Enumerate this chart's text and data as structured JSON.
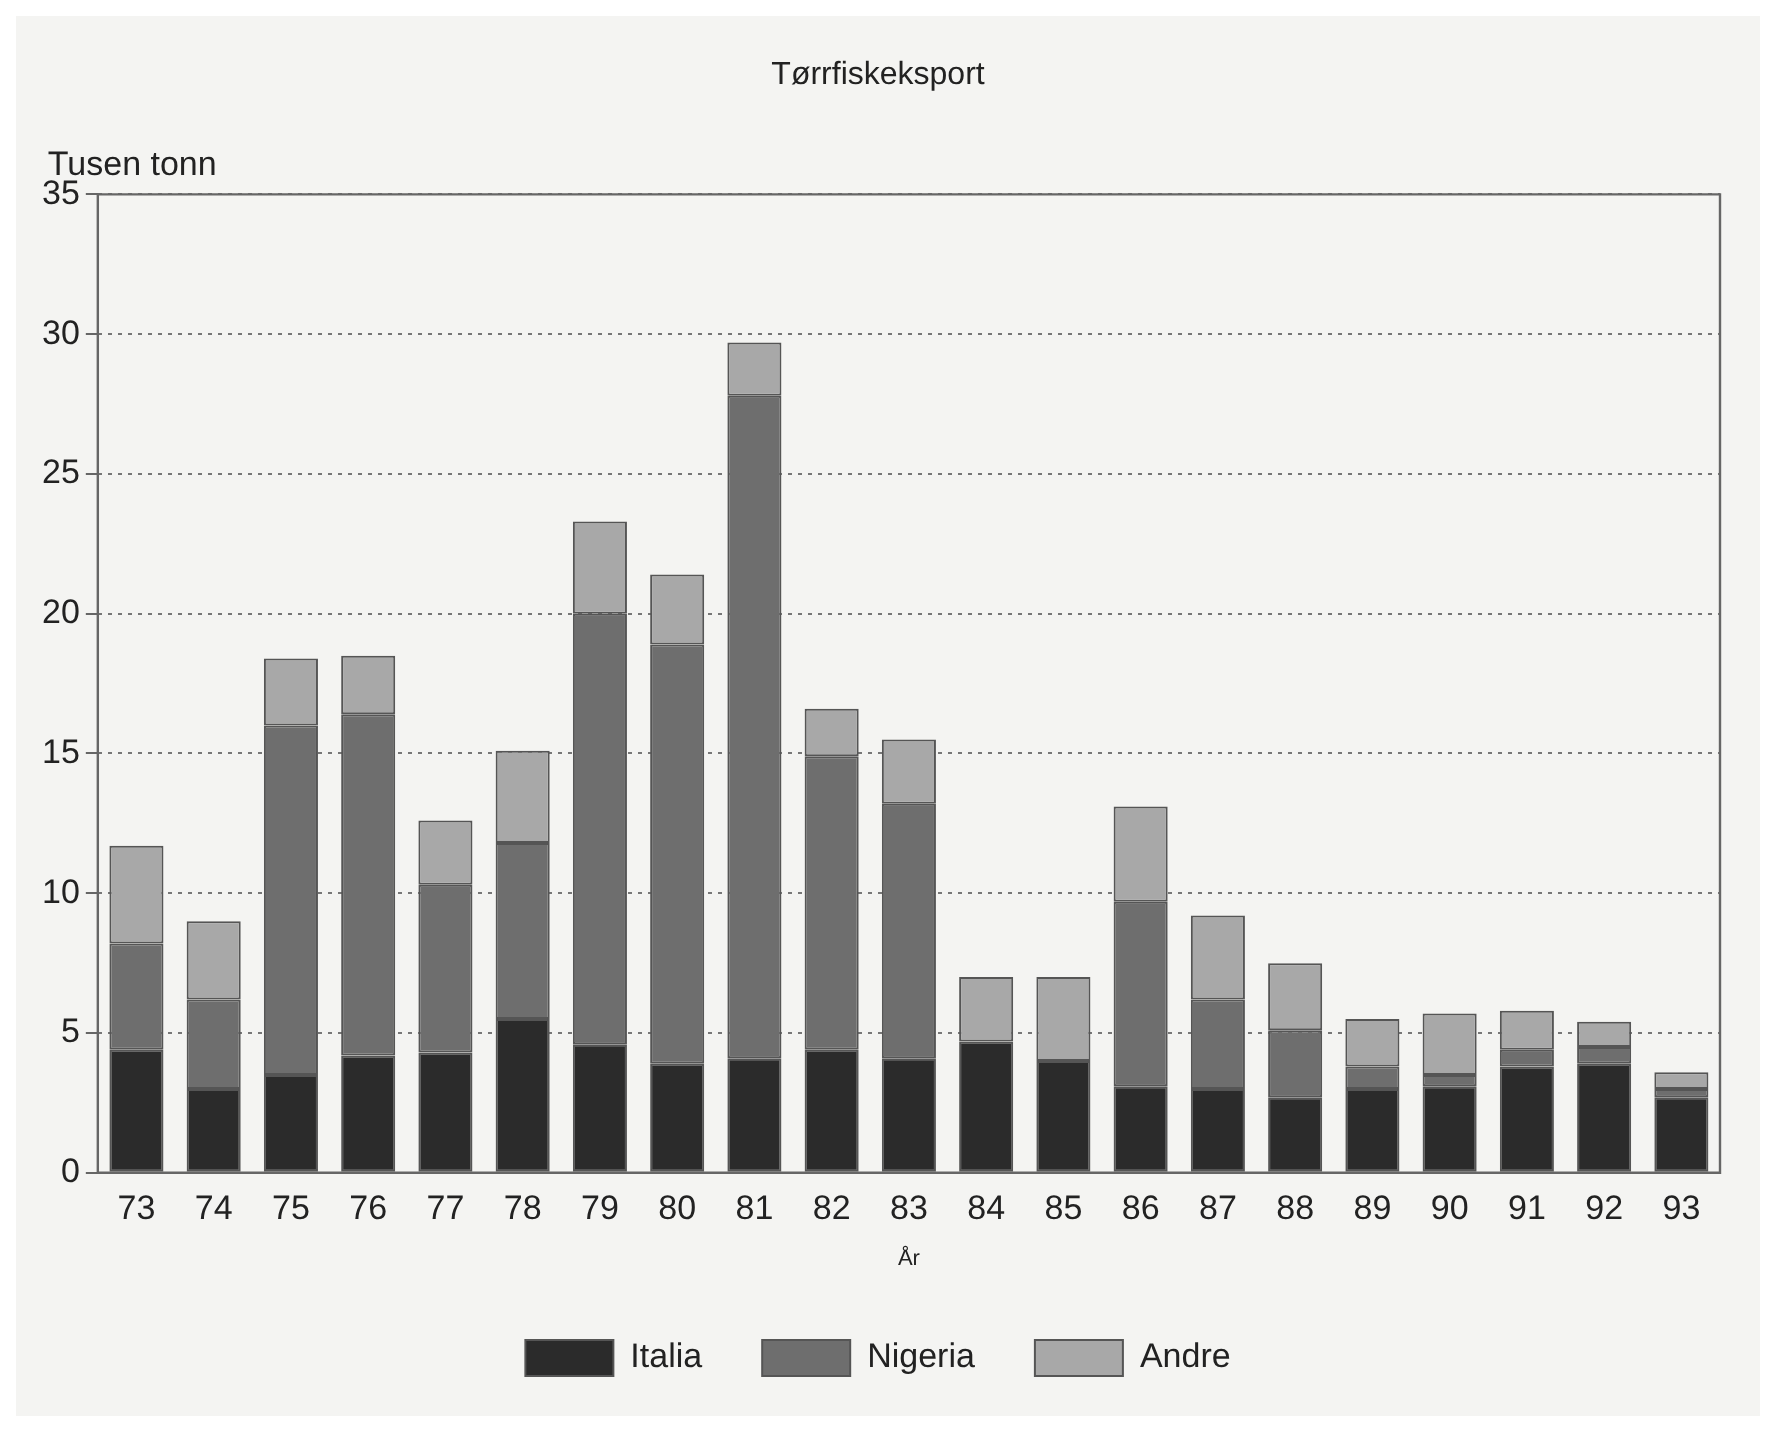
{
  "chart_data": {
    "type": "bar",
    "title": "Tørrfiskeksport",
    "xlabel": "År",
    "ylabel": "Tusen tonn",
    "categories": [
      "73",
      "74",
      "75",
      "76",
      "77",
      "78",
      "79",
      "80",
      "81",
      "82",
      "83",
      "84",
      "85",
      "86",
      "87",
      "88",
      "89",
      "90",
      "91",
      "92",
      "93"
    ],
    "series": [
      {
        "name": "Italia",
        "color": "#2b2b2b",
        "values": [
          4.4,
          3.0,
          3.5,
          4.2,
          4.3,
          5.5,
          4.6,
          3.9,
          4.1,
          4.4,
          4.1,
          4.7,
          4.0,
          3.1,
          3.0,
          2.7,
          3.0,
          3.1,
          3.8,
          3.9,
          2.7
        ]
      },
      {
        "name": "Nigeria",
        "color": "#6e6e6e",
        "values": [
          3.8,
          3.2,
          12.5,
          12.2,
          6.0,
          6.3,
          15.4,
          15.0,
          23.7,
          10.5,
          9.1,
          0,
          0,
          6.6,
          3.2,
          2.4,
          0.8,
          0.4,
          0.6,
          0.6,
          0.3
        ]
      },
      {
        "name": "Andre",
        "color": "#a8a8a8",
        "values": [
          3.5,
          2.8,
          2.4,
          2.1,
          2.3,
          3.3,
          3.3,
          2.5,
          1.9,
          1.7,
          2.3,
          2.3,
          3.0,
          3.4,
          3.0,
          2.4,
          1.7,
          2.2,
          1.4,
          0.9,
          0.6
        ]
      }
    ],
    "stacked": true,
    "ylim": [
      0,
      35
    ],
    "yticks": [
      0,
      5,
      10,
      15,
      20,
      25,
      30,
      35
    ],
    "grid": "y",
    "legend": "bottom"
  }
}
